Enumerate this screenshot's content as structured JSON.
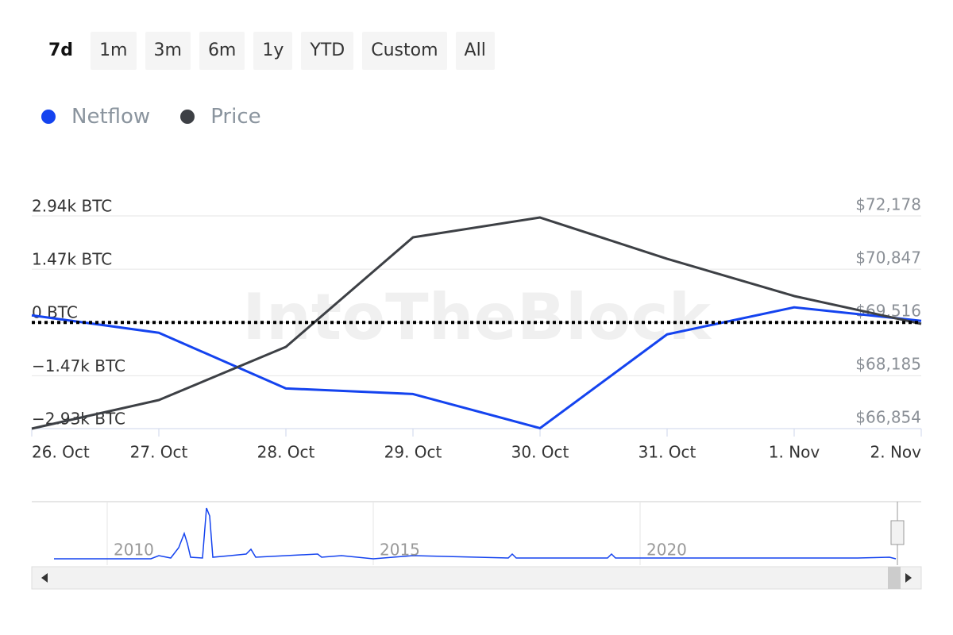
{
  "range_buttons": [
    "7d",
    "1m",
    "3m",
    "6m",
    "1y",
    "YTD",
    "Custom",
    "All"
  ],
  "selected_button": "7d",
  "watermark": "IntoTheBlock",
  "chart_data": {
    "type": "line",
    "categories": [
      "26. Oct",
      "27. Oct",
      "28. Oct",
      "29. Oct",
      "30. Oct",
      "31. Oct",
      "1. Nov",
      "2. Nov"
    ],
    "series": [
      {
        "name": "Netflow",
        "color": "#1443ef",
        "values": [
          197,
          -285,
          -1821,
          -1975,
          -2918,
          -329,
          417,
          44
        ]
      },
      {
        "name": "Price",
        "color": "#3d4045",
        "axis": "y2",
        "values": [
          66854,
          67569,
          68900,
          71642,
          72138,
          71105,
          70172,
          69476
        ]
      }
    ],
    "ylim": [
      -2930,
      2940
    ],
    "yticks": [
      {
        "value": 2940,
        "label": "2.94k BTC"
      },
      {
        "value": 1470,
        "label": "1.47k BTC"
      },
      {
        "value": 0,
        "label": "0 BTC"
      },
      {
        "value": -1470,
        "label": "−1.47k BTC"
      },
      {
        "value": -2930,
        "label": "−2.93k BTC"
      }
    ],
    "y2lim": [
      66854,
      72178
    ],
    "y2ticks": [
      {
        "value": 72178,
        "label": "$72,178"
      },
      {
        "value": 70847,
        "label": "$70,847"
      },
      {
        "value": 69516,
        "label": "$69,516"
      },
      {
        "value": 68185,
        "label": "$68,185"
      },
      {
        "value": 66854,
        "label": "$66,854"
      }
    ],
    "plot_line": 0,
    "navigator_labels": [
      "2010",
      "2015",
      "2020"
    ]
  }
}
